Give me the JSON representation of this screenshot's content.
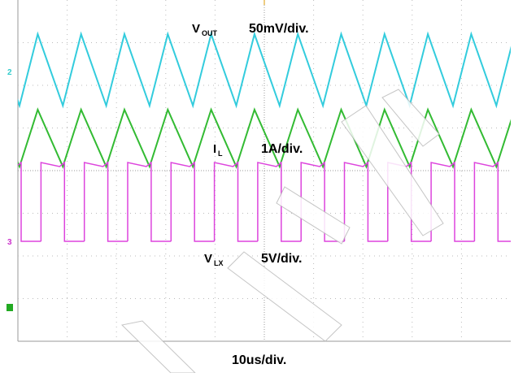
{
  "traces": [
    {
      "label": "V",
      "sub": "OUT",
      "scale": "50mV/div."
    },
    {
      "label": "I",
      "sub": "L",
      "scale": "1A/div."
    },
    {
      "label": "V",
      "sub": "LX",
      "scale": "5V/div."
    }
  ],
  "channel_markers": [
    "2",
    "3"
  ],
  "timebase": "10us/div."
}
